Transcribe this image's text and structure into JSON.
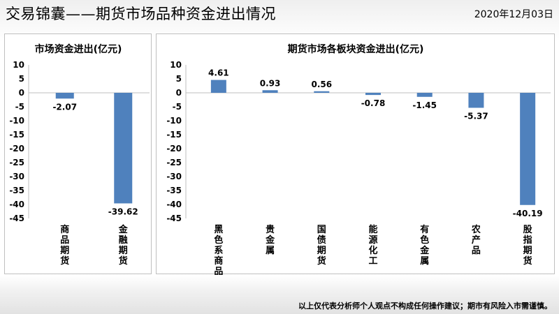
{
  "header": {
    "title": "交易锦囊——期货市场品种资金进出情况",
    "date": "2020年12月03日"
  },
  "footer": {
    "disclaimer": "以上仅代表分析师个人观点不构成任何操作建议；期市有风险入市需谨慎。"
  },
  "colors": {
    "bar": "#4f81bd",
    "axis": "#bfbfbf"
  },
  "chart_data": [
    {
      "type": "bar",
      "title": "市场资金进出(亿元)",
      "categories": [
        "商品期货",
        "金融期货"
      ],
      "values": [
        -2.07,
        -39.62
      ],
      "labels": [
        "-2.07",
        "-39.62"
      ],
      "ylim": [
        -45,
        10
      ],
      "yticks": [
        10,
        5,
        0,
        -5,
        -10,
        -15,
        -20,
        -25,
        -30,
        -35,
        -40,
        -45
      ],
      "grid": false,
      "legend": "none"
    },
    {
      "type": "bar",
      "title": "期货市场各板块资金进出(亿元)",
      "categories": [
        "黑色系商品",
        "贵金属",
        "国债期货",
        "能源化工",
        "有色金属",
        "农产品",
        "股指期货"
      ],
      "values": [
        4.61,
        0.93,
        0.56,
        -0.78,
        -1.45,
        -5.37,
        -40.19
      ],
      "labels": [
        "4.61",
        "0.93",
        "0.56",
        "-0.78",
        "-1.45",
        "-5.37",
        "-40.19"
      ],
      "ylim": [
        -45,
        10
      ],
      "yticks": [
        10,
        5,
        0,
        -5,
        -10,
        -15,
        -20,
        -25,
        -30,
        -35,
        -40,
        -45
      ],
      "grid": false,
      "legend": "none"
    }
  ]
}
